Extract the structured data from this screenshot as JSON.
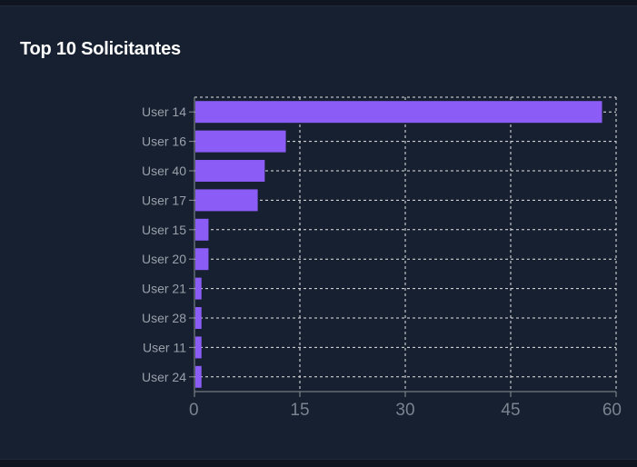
{
  "card": {
    "title": "Top 10 Solicitantes"
  },
  "colors": {
    "background": "#0f1520",
    "card": "#172030",
    "bar": "#8b5cf6",
    "grid": "#e6e6e6",
    "axis_text": "#9aa0aa"
  },
  "chart_data": {
    "type": "bar",
    "orientation": "horizontal",
    "categories": [
      "User 14",
      "User 16",
      "User 40",
      "User 17",
      "User 15",
      "User 20",
      "User 21",
      "User 28",
      "User 11",
      "User 24"
    ],
    "values": [
      58,
      13,
      10,
      9,
      2,
      2,
      1,
      1,
      1,
      1
    ],
    "xlim": [
      0,
      60
    ],
    "xticks": [
      0,
      15,
      30,
      45,
      60
    ],
    "grid": true,
    "legend": "none"
  }
}
